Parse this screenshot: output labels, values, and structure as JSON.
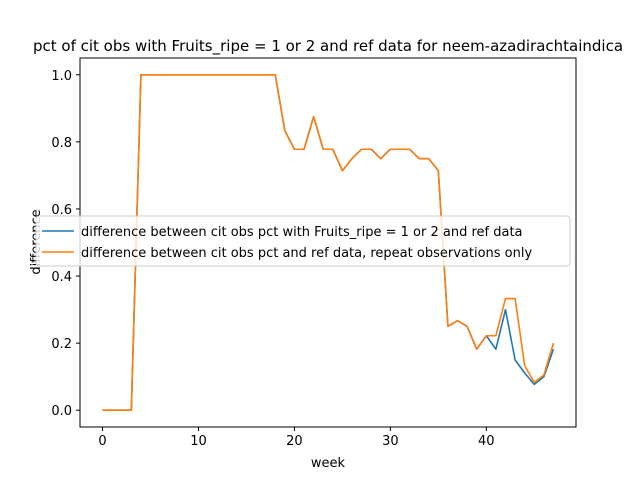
{
  "chart_data": {
    "type": "line",
    "title": "pct of cit obs with Fruits_ripe = 1 or 2 and ref data for neem-azadirachtaindica",
    "xlabel": "week",
    "ylabel": "difference",
    "xlim": [
      -2.35,
      49.35
    ],
    "ylim": [
      -0.05,
      1.05
    ],
    "xticks": [
      0,
      10,
      20,
      30,
      40
    ],
    "yticks": [
      0.0,
      0.2,
      0.4,
      0.6,
      0.8,
      1.0
    ],
    "xtick_labels": [
      "0",
      "10",
      "20",
      "30",
      "40"
    ],
    "ytick_labels": [
      "0.0",
      "0.2",
      "0.4",
      "0.6",
      "0.8",
      "1.0"
    ],
    "grid": false,
    "legend_placement": "center-left",
    "x": [
      0,
      1,
      2,
      3,
      4,
      5,
      6,
      7,
      8,
      9,
      10,
      11,
      12,
      13,
      14,
      15,
      16,
      17,
      18,
      19,
      20,
      21,
      22,
      23,
      24,
      25,
      26,
      27,
      28,
      29,
      30,
      31,
      32,
      33,
      34,
      35,
      36,
      37,
      38,
      39,
      40,
      41,
      42,
      43,
      44,
      45,
      46,
      47
    ],
    "series": [
      {
        "name": "difference between cit obs pct with Fruits_ripe = 1 or 2 and ref data",
        "color": "#1f77b4",
        "values": [
          0,
          0,
          0,
          0,
          1,
          1,
          1,
          1,
          1,
          1,
          1,
          1,
          1,
          1,
          1,
          1,
          1,
          1,
          1,
          0.833,
          0.778,
          0.778,
          0.875,
          0.778,
          0.778,
          0.714,
          0.75,
          0.778,
          0.778,
          0.75,
          0.778,
          0.778,
          0.778,
          0.75,
          0.75,
          0.714,
          0.25,
          0.267,
          0.25,
          0.182,
          0.222,
          0.182,
          0.3,
          0.15,
          0.111,
          0.077,
          0.1,
          0.182
        ]
      },
      {
        "name": "difference between cit obs pct and ref data, repeat observations only",
        "color": "#ff7f0e",
        "values": [
          0,
          0,
          0,
          0,
          1,
          1,
          1,
          1,
          1,
          1,
          1,
          1,
          1,
          1,
          1,
          1,
          1,
          1,
          1,
          0.833,
          0.778,
          0.778,
          0.875,
          0.778,
          0.778,
          0.714,
          0.75,
          0.778,
          0.778,
          0.75,
          0.778,
          0.778,
          0.778,
          0.75,
          0.75,
          0.714,
          0.25,
          0.267,
          0.25,
          0.182,
          0.222,
          0.222,
          0.333,
          0.333,
          0.133,
          0.083,
          0.105,
          0.2
        ]
      }
    ]
  }
}
